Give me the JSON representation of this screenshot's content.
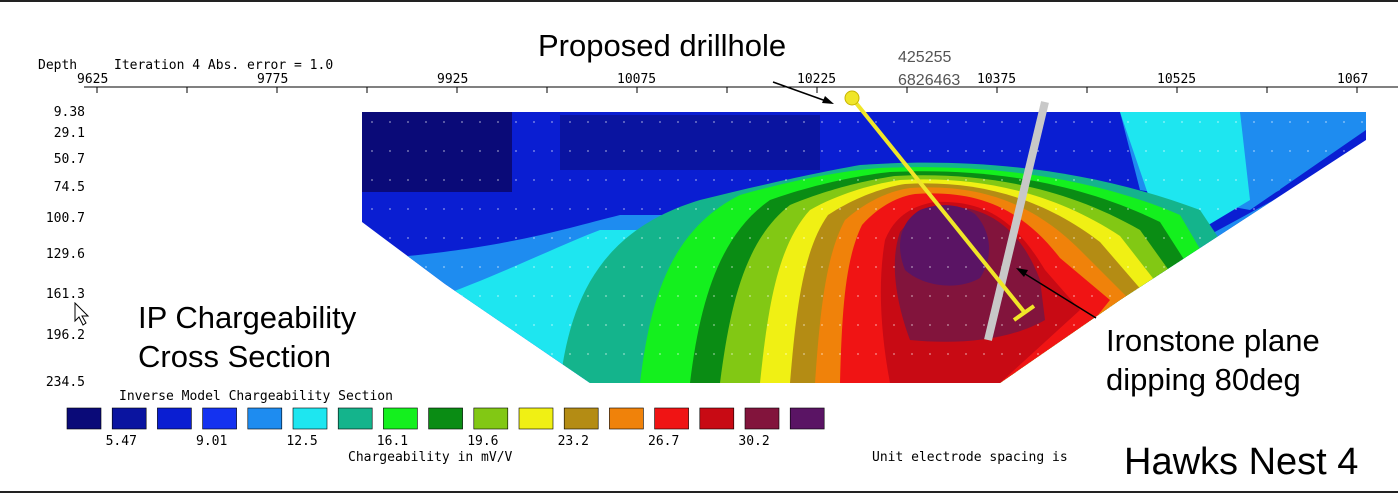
{
  "chart_data": {
    "type": "heatmap",
    "header": {
      "depth_label": "Depth",
      "iteration_label": "Iteration 4 Abs. error = 1.0"
    },
    "x_ticks": [
      "9625",
      "9775",
      "9925",
      "10075",
      "10225",
      "10375",
      "10525",
      "1067"
    ],
    "depth_ticks": [
      "9.38",
      "29.1",
      "50.7",
      "74.5",
      "100.7",
      "129.6",
      "161.3",
      "196.2",
      "234.5"
    ],
    "legend": {
      "title": "Inverse Model Chargeability Section",
      "colors": [
        "#0a0a78",
        "#0a14a0",
        "#0a1ed2",
        "#1432f0",
        "#1e8cf0",
        "#1ee6f0",
        "#14b48c",
        "#14f01e",
        "#0a8c14",
        "#82c814",
        "#f0f014",
        "#b48c14",
        "#f0820a",
        "#f01414",
        "#c80a14",
        "#82143c",
        "#5a1464"
      ],
      "labels": [
        "5.47",
        "9.01",
        "12.5",
        "16.1",
        "19.6",
        "23.2",
        "26.7",
        "30.2"
      ],
      "unit_label": "Chargeability in mV/V"
    },
    "footer_text": "Unit electrode spacing is"
  },
  "annotations": {
    "proposed_drillhole": "Proposed drillhole",
    "coord_easting": "425255",
    "coord_northing": "6826463",
    "section_title_line1": "IP Chargeability",
    "section_title_line2": "Cross Section",
    "ironstone_line1": "Ironstone plane",
    "ironstone_line2": "dipping 80deg",
    "line_name": "Hawks Nest 4"
  },
  "colors": {
    "drillhole": "#f0e628",
    "ironstone_plane": "#c8c8c8",
    "arrow": "#000000"
  }
}
